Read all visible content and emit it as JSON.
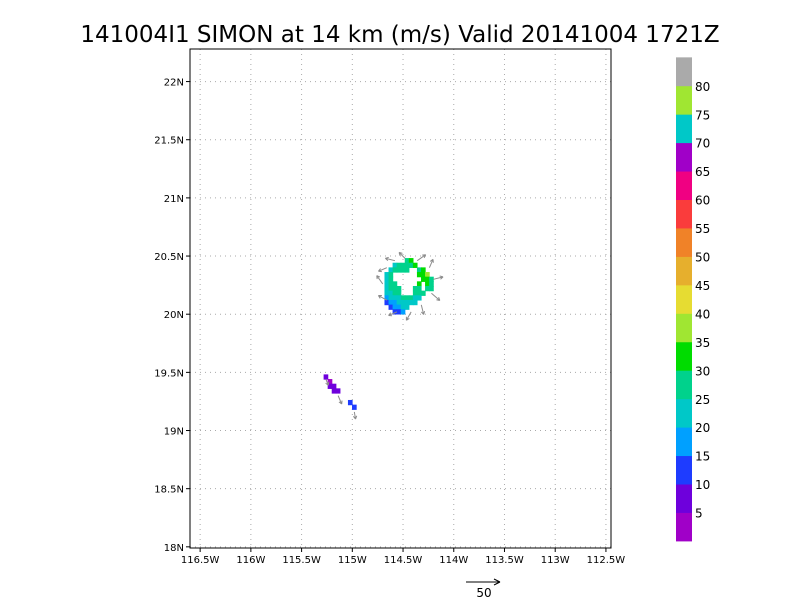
{
  "chart_data": {
    "type": "heatmap",
    "title": "141004I1 SIMON at 14 km (m/s) Valid 20141004 1721Z",
    "xlabel": "",
    "ylabel": "",
    "x_range": [
      -116.6,
      -112.45
    ],
    "y_range": [
      17.99,
      22.28
    ],
    "grid": true,
    "x_ticks": [
      {
        "value": -116.5,
        "label": "116.5W"
      },
      {
        "value": -116.0,
        "label": "116W"
      },
      {
        "value": -115.5,
        "label": "115.5W"
      },
      {
        "value": -115.0,
        "label": "115W"
      },
      {
        "value": -114.5,
        "label": "114.5W"
      },
      {
        "value": -114.0,
        "label": "114W"
      },
      {
        "value": -113.5,
        "label": "113.5W"
      },
      {
        "value": -113.0,
        "label": "113W"
      },
      {
        "value": -112.5,
        "label": "112.5W"
      }
    ],
    "y_ticks": [
      {
        "value": 18.0,
        "label": "18N"
      },
      {
        "value": 18.5,
        "label": "18.5N"
      },
      {
        "value": 19.0,
        "label": "19N"
      },
      {
        "value": 19.5,
        "label": "19.5N"
      },
      {
        "value": 20.0,
        "label": "20N"
      },
      {
        "value": 20.5,
        "label": "20.5N"
      },
      {
        "value": 21.0,
        "label": "21N"
      },
      {
        "value": 21.5,
        "label": "21.5N"
      },
      {
        "value": 22.0,
        "label": "22N"
      }
    ],
    "colorbar": [
      {
        "color": "#a000c8",
        "label": "5"
      },
      {
        "color": "#6e00dc",
        "label": "10"
      },
      {
        "color": "#1e3cff",
        "label": "15"
      },
      {
        "color": "#00a0ff",
        "label": "20"
      },
      {
        "color": "#00c8c8",
        "label": "25"
      },
      {
        "color": "#00d28c",
        "label": "30"
      },
      {
        "color": "#00dc00",
        "label": "35"
      },
      {
        "color": "#a0e632",
        "label": "40"
      },
      {
        "color": "#e6dc32",
        "label": "45"
      },
      {
        "color": "#e6af2d",
        "label": "50"
      },
      {
        "color": "#f08228",
        "label": "55"
      },
      {
        "color": "#fa3c3c",
        "label": "60"
      },
      {
        "color": "#f00082",
        "label": "65"
      },
      {
        "color": "#a000c8",
        "label": "70"
      },
      {
        "color": "#00c8c8",
        "label": "75"
      },
      {
        "color": "#a0e632",
        "label": "80"
      },
      {
        "color": "#aaaaaa",
        "label": ""
      }
    ],
    "cells": [
      [
        -114.46,
        20.46,
        30
      ],
      [
        -114.42,
        20.46,
        35
      ],
      [
        -114.58,
        20.42,
        25
      ],
      [
        -114.54,
        20.42,
        30
      ],
      [
        -114.5,
        20.42,
        30
      ],
      [
        -114.46,
        20.42,
        30
      ],
      [
        -114.42,
        20.42,
        30
      ],
      [
        -114.38,
        20.42,
        35
      ],
      [
        -114.62,
        20.38,
        25
      ],
      [
        -114.58,
        20.38,
        30
      ],
      [
        -114.54,
        20.38,
        30
      ],
      [
        -114.5,
        20.38,
        30
      ],
      [
        -114.46,
        20.38,
        30
      ],
      [
        -114.34,
        20.38,
        30
      ],
      [
        -114.3,
        20.38,
        35
      ],
      [
        -114.66,
        20.34,
        25
      ],
      [
        -114.62,
        20.34,
        30
      ],
      [
        -114.34,
        20.34,
        35
      ],
      [
        -114.3,
        20.34,
        35
      ],
      [
        -114.26,
        20.34,
        40
      ],
      [
        -114.66,
        20.3,
        25
      ],
      [
        -114.62,
        20.3,
        30
      ],
      [
        -114.3,
        20.3,
        35
      ],
      [
        -114.26,
        20.3,
        35
      ],
      [
        -114.22,
        20.3,
        30
      ],
      [
        -114.66,
        20.26,
        25
      ],
      [
        -114.62,
        20.26,
        30
      ],
      [
        -114.58,
        20.26,
        30
      ],
      [
        -114.34,
        20.26,
        35
      ],
      [
        -114.26,
        20.26,
        35
      ],
      [
        -114.22,
        20.26,
        30
      ],
      [
        -114.66,
        20.22,
        25
      ],
      [
        -114.62,
        20.22,
        30
      ],
      [
        -114.58,
        20.22,
        30
      ],
      [
        -114.54,
        20.22,
        30
      ],
      [
        -114.38,
        20.22,
        30
      ],
      [
        -114.34,
        20.22,
        30
      ],
      [
        -114.26,
        20.22,
        30
      ],
      [
        -114.22,
        20.22,
        30
      ],
      [
        -114.66,
        20.18,
        25
      ],
      [
        -114.62,
        20.18,
        25
      ],
      [
        -114.58,
        20.18,
        30
      ],
      [
        -114.54,
        20.18,
        30
      ],
      [
        -114.38,
        20.18,
        30
      ],
      [
        -114.34,
        20.18,
        30
      ],
      [
        -114.3,
        20.18,
        30
      ],
      [
        -114.66,
        20.14,
        20
      ],
      [
        -114.62,
        20.14,
        25
      ],
      [
        -114.58,
        20.14,
        25
      ],
      [
        -114.54,
        20.14,
        25
      ],
      [
        -114.5,
        20.14,
        30
      ],
      [
        -114.46,
        20.14,
        30
      ],
      [
        -114.42,
        20.14,
        30
      ],
      [
        -114.38,
        20.14,
        25
      ],
      [
        -114.34,
        20.14,
        25
      ],
      [
        -114.66,
        20.1,
        15
      ],
      [
        -114.62,
        20.1,
        20
      ],
      [
        -114.58,
        20.1,
        20
      ],
      [
        -114.54,
        20.1,
        25
      ],
      [
        -114.5,
        20.1,
        25
      ],
      [
        -114.46,
        20.1,
        25
      ],
      [
        -114.42,
        20.1,
        25
      ],
      [
        -114.38,
        20.1,
        25
      ],
      [
        -114.62,
        20.06,
        15
      ],
      [
        -114.58,
        20.06,
        20
      ],
      [
        -114.54,
        20.06,
        20
      ],
      [
        -114.5,
        20.06,
        25
      ],
      [
        -114.46,
        20.06,
        25
      ],
      [
        -114.58,
        20.02,
        15
      ],
      [
        -114.54,
        20.02,
        15
      ],
      [
        -114.5,
        20.02,
        20
      ],
      [
        -115.26,
        19.46,
        10
      ],
      [
        -115.22,
        19.42,
        5
      ],
      [
        -115.22,
        19.38,
        10
      ],
      [
        -115.18,
        19.38,
        10
      ],
      [
        -115.18,
        19.34,
        10
      ],
      [
        -115.14,
        19.34,
        10
      ],
      [
        -115.02,
        19.24,
        15
      ],
      [
        -114.98,
        19.2,
        15
      ]
    ],
    "vectors": [
      [
        -114.66,
        20.4,
        -0.7,
        -0.3
      ],
      [
        -114.58,
        20.46,
        -0.8,
        0.2
      ],
      [
        -114.48,
        20.48,
        -0.5,
        0.5
      ],
      [
        -114.36,
        20.46,
        0.7,
        0.5
      ],
      [
        -114.24,
        20.4,
        0.3,
        0.7
      ],
      [
        -114.2,
        20.3,
        0.8,
        0.2
      ],
      [
        -114.22,
        20.18,
        0.7,
        -0.6
      ],
      [
        -114.32,
        20.08,
        0.2,
        -0.8
      ],
      [
        -114.42,
        20.02,
        -0.4,
        -0.7
      ],
      [
        -114.56,
        20.02,
        -0.7,
        -0.3
      ],
      [
        -114.66,
        20.12,
        -0.7,
        0.4
      ],
      [
        -114.7,
        20.26,
        -0.5,
        0.7
      ],
      [
        -115.26,
        19.44,
        0.2,
        -0.5
      ],
      [
        -115.14,
        19.3,
        0.3,
        -0.7
      ],
      [
        -114.98,
        19.16,
        0.1,
        -0.6
      ]
    ],
    "reference_vector": {
      "label": "50"
    }
  }
}
